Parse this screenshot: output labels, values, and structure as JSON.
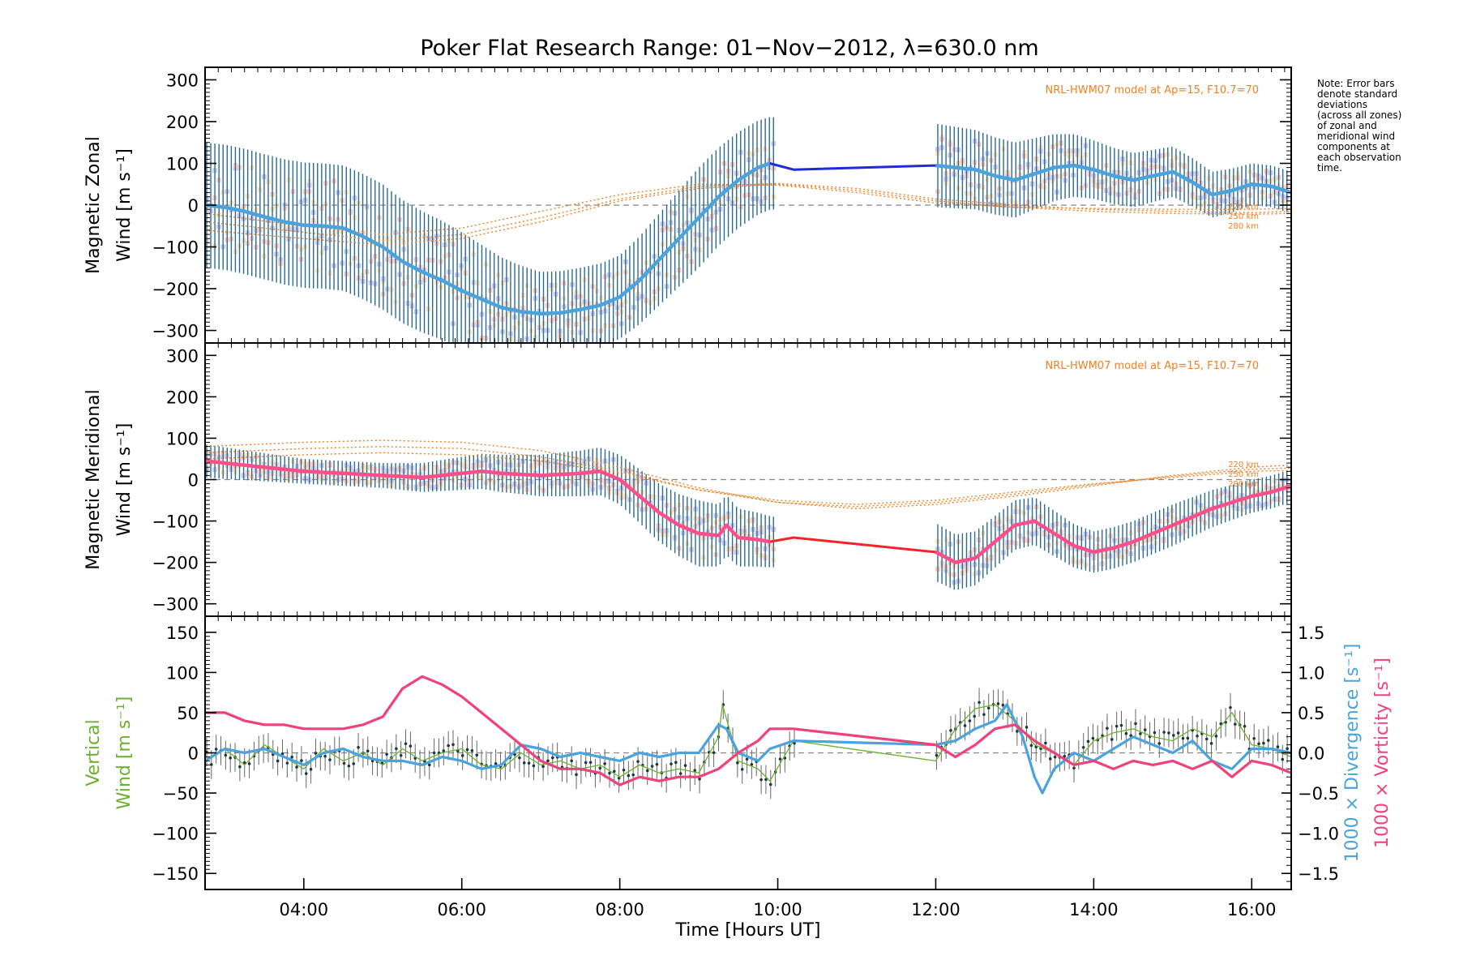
{
  "page": {
    "title": "Poker Flat Research Range: 01−Nov−2012, λ=630.0 nm",
    "note": "Note: Error bars\ndenote standard\ndeviations\n(across all zones)\nof zonal and\nmeridional wind\ncomponents at\neach observation\ntime."
  },
  "colors": {
    "zonal_fit": "#4aa3dd",
    "zonal_gap": "#1f2ad8",
    "meridional_fit": "#ff4f8b",
    "meridional_gap": "#f5232c",
    "vertical": "#6bb02f",
    "divergence": "#4aa3dd",
    "vorticity": "#f0427a",
    "model": "#f08020",
    "errorbar": "#2a6a90",
    "zone_a": "#ffd08a",
    "zone_b": "#a9a4e0",
    "zone_c": "#ffa890"
  },
  "chart_data": [
    {
      "id": "zonal",
      "type": "line",
      "ylabel_line1": "Magnetic Zonal",
      "ylabel_line2": "Wind [m s⁻¹]",
      "ylim": [
        -330,
        330
      ],
      "xlim": [
        2.75,
        16.5
      ],
      "yticks": [
        -300,
        -200,
        -100,
        0,
        100,
        200,
        300
      ],
      "ytick_labels": [
        "−300",
        "−200",
        "−100",
        "0",
        "100",
        "200",
        "300"
      ],
      "model_label": "NRL-HWM07 model at Ap=15, F10.7=70",
      "model_altitude_labels": [
        "220 km",
        "250 km",
        "280 km"
      ],
      "series": [
        {
          "role": "fit",
          "x": [
            2.75,
            3.0,
            3.25,
            3.5,
            3.75,
            4.0,
            4.25,
            4.5,
            4.75,
            5.0,
            5.25,
            5.5,
            5.75,
            6.0,
            6.25,
            6.5,
            6.75,
            7.0,
            7.25,
            7.5,
            7.75,
            8.0,
            8.25,
            8.5,
            8.75,
            9.0,
            9.25,
            9.5,
            9.75,
            9.9
          ],
          "y": [
            0,
            -5,
            -15,
            -28,
            -40,
            -48,
            -50,
            -55,
            -75,
            -100,
            -135,
            -160,
            -180,
            -205,
            -225,
            -245,
            -255,
            -260,
            -258,
            -250,
            -240,
            -220,
            -180,
            -130,
            -80,
            -30,
            20,
            60,
            90,
            100
          ]
        },
        {
          "role": "gap",
          "x": [
            9.9,
            10.2,
            12.0
          ],
          "y": [
            100,
            85,
            95
          ]
        },
        {
          "role": "fit",
          "x": [
            12.0,
            12.25,
            12.5,
            12.75,
            13.0,
            13.25,
            13.5,
            13.75,
            14.0,
            14.25,
            14.5,
            14.75,
            15.0,
            15.25,
            15.5,
            15.75,
            16.0,
            16.25,
            16.5
          ],
          "y": [
            95,
            90,
            85,
            70,
            60,
            75,
            90,
            95,
            85,
            70,
            60,
            70,
            80,
            55,
            25,
            35,
            50,
            45,
            30
          ]
        }
      ],
      "model_curves": [
        {
          "x": [
            2.75,
            4,
            5,
            6,
            7,
            8,
            9,
            10,
            11,
            12,
            13,
            14,
            15,
            16,
            16.5
          ],
          "y": [
            -60,
            -80,
            -95,
            -80,
            -40,
            10,
            40,
            50,
            35,
            10,
            -5,
            -15,
            -20,
            -22,
            -20
          ]
        },
        {
          "x": [
            2.75,
            4,
            5,
            6,
            7,
            8,
            9,
            10,
            11,
            12,
            13,
            14,
            15,
            16,
            16.5
          ],
          "y": [
            -40,
            -65,
            -85,
            -70,
            -30,
            15,
            45,
            52,
            40,
            15,
            0,
            -10,
            -15,
            -18,
            -15
          ]
        },
        {
          "x": [
            2.75,
            4,
            5,
            6,
            7,
            8,
            9,
            10,
            11,
            12,
            13,
            14,
            15,
            16,
            16.5
          ],
          "y": [
            -20,
            -50,
            -70,
            -55,
            -15,
            25,
            50,
            48,
            30,
            5,
            -5,
            -8,
            -10,
            -10,
            -8
          ]
        }
      ],
      "spread": {
        "x": [
          2.75,
          4,
          5,
          6,
          7,
          8,
          9,
          10,
          12,
          13,
          14,
          15,
          16,
          16.5
        ],
        "half_width": [
          150,
          150,
          150,
          140,
          100,
          100,
          120,
          110,
          100,
          90,
          70,
          60,
          50,
          50
        ]
      }
    },
    {
      "id": "meridional",
      "type": "line",
      "ylabel_line1": "Magnetic Meridional",
      "ylabel_line2": "Wind [m s⁻¹]",
      "ylim": [
        -330,
        330
      ],
      "xlim": [
        2.75,
        16.5
      ],
      "yticks": [
        -300,
        -200,
        -100,
        0,
        100,
        200,
        300
      ],
      "ytick_labels": [
        "−300",
        "−200",
        "−100",
        "0",
        "100",
        "200",
        "300"
      ],
      "model_label": "NRL-HWM07 model at Ap=15, F10.7=70",
      "model_altitude_labels": [
        "220 km",
        "250 km",
        "280 km"
      ],
      "series": [
        {
          "role": "fit",
          "x": [
            2.75,
            3.0,
            3.5,
            4.0,
            4.5,
            5.0,
            5.5,
            6.0,
            6.25,
            6.5,
            7.0,
            7.5,
            7.75,
            8.0,
            8.25,
            8.5,
            8.75,
            9.0,
            9.25,
            9.35,
            9.5,
            9.75,
            9.9
          ],
          "y": [
            45,
            40,
            30,
            20,
            15,
            10,
            5,
            15,
            20,
            15,
            10,
            15,
            20,
            0,
            -40,
            -80,
            -110,
            -130,
            -135,
            -110,
            -140,
            -145,
            -150
          ]
        },
        {
          "role": "gap",
          "x": [
            9.9,
            10.2,
            12.0
          ],
          "y": [
            -150,
            -140,
            -175
          ]
        },
        {
          "role": "fit",
          "x": [
            12.0,
            12.25,
            12.5,
            12.75,
            13.0,
            13.25,
            13.5,
            13.75,
            14.0,
            14.25,
            14.5,
            14.75,
            15.0,
            15.25,
            15.5,
            15.75,
            16.0,
            16.25,
            16.5
          ],
          "y": [
            -175,
            -200,
            -190,
            -150,
            -110,
            -100,
            -130,
            -160,
            -175,
            -165,
            -150,
            -130,
            -110,
            -90,
            -70,
            -55,
            -40,
            -30,
            -15
          ]
        }
      ],
      "model_curves": [
        {
          "x": [
            2.75,
            4,
            5,
            6,
            7,
            8,
            9,
            10,
            11,
            12,
            13,
            14,
            15,
            16,
            16.5
          ],
          "y": [
            80,
            90,
            95,
            90,
            70,
            30,
            -20,
            -55,
            -70,
            -60,
            -40,
            -15,
            10,
            30,
            35
          ]
        },
        {
          "x": [
            2.75,
            4,
            5,
            6,
            7,
            8,
            9,
            10,
            11,
            12,
            13,
            14,
            15,
            16,
            16.5
          ],
          "y": [
            65,
            75,
            80,
            75,
            55,
            20,
            -25,
            -55,
            -65,
            -55,
            -35,
            -12,
            8,
            25,
            28
          ]
        },
        {
          "x": [
            2.75,
            4,
            5,
            6,
            7,
            8,
            9,
            10,
            11,
            12,
            13,
            14,
            15,
            16,
            16.5
          ],
          "y": [
            50,
            60,
            65,
            60,
            45,
            15,
            -25,
            -50,
            -60,
            -50,
            -30,
            -10,
            5,
            20,
            22
          ]
        }
      ],
      "spread": {
        "x": [
          2.75,
          4,
          5,
          6,
          7,
          8,
          9,
          10,
          12,
          13,
          14,
          15,
          16,
          16.5
        ],
        "half_width": [
          40,
          30,
          30,
          40,
          50,
          60,
          80,
          60,
          70,
          60,
          50,
          50,
          40,
          40
        ]
      }
    },
    {
      "id": "vertical",
      "type": "line",
      "ylabel_line1": "Vertical",
      "ylabel_line2": "Wind [m s⁻¹]",
      "ylim": [
        -170,
        170
      ],
      "xlim": [
        2.75,
        16.5
      ],
      "yticks": [
        -150,
        -100,
        -50,
        0,
        50,
        100,
        150
      ],
      "ytick_labels": [
        "−150",
        "−100",
        "−50",
        "0",
        "50",
        "100",
        "150"
      ],
      "y2label_a": "1000 × Divergence [s⁻¹]",
      "y2label_b": "1000 × Vorticity [s⁻¹]",
      "y2lim": [
        -1.7,
        1.7
      ],
      "y2ticks": [
        -1.5,
        -1.0,
        -0.5,
        0.0,
        0.5,
        1.0,
        1.5
      ],
      "y2tick_labels": [
        "−1.5",
        "−1.0",
        "−0.5",
        "0.0",
        "0.5",
        "1.0",
        "1.5"
      ],
      "xticks": [
        4,
        6,
        8,
        10,
        12,
        14,
        16
      ],
      "xtick_labels": [
        "04:00",
        "06:00",
        "08:00",
        "10:00",
        "12:00",
        "14:00",
        "16:00"
      ],
      "xlabel": "Time [Hours UT]",
      "series": [
        {
          "name": "",
          "role": "vertical",
          "x": [
            2.75,
            3.0,
            3.25,
            3.5,
            3.75,
            4.0,
            4.25,
            4.5,
            4.75,
            5.0,
            5.25,
            5.5,
            5.75,
            6.0,
            6.25,
            6.5,
            6.75,
            7.0,
            7.25,
            7.5,
            7.75,
            8.0,
            8.25,
            8.5,
            8.75,
            9.0,
            9.25,
            9.3,
            9.5,
            9.75,
            9.9,
            10.2,
            12.0,
            12.25,
            12.5,
            12.75,
            13.0,
            13.25,
            13.5,
            13.75,
            14.0,
            14.25,
            14.5,
            14.75,
            15.0,
            15.25,
            15.5,
            15.75,
            16.0,
            16.25,
            16.5
          ],
          "y": [
            -10,
            5,
            -15,
            10,
            -5,
            -20,
            5,
            -10,
            0,
            -15,
            5,
            -10,
            0,
            5,
            -15,
            -20,
            0,
            -15,
            -10,
            -20,
            -15,
            -30,
            -15,
            -25,
            -20,
            -25,
            20,
            60,
            -10,
            -20,
            -35,
            15,
            -10,
            30,
            55,
            60,
            40,
            10,
            0,
            -15,
            15,
            25,
            30,
            20,
            15,
            30,
            20,
            50,
            10,
            5,
            -5
          ]
        },
        {
          "name": "",
          "role": "divergence",
          "x": [
            2.75,
            3.0,
            3.25,
            3.5,
            3.75,
            4.0,
            4.25,
            4.5,
            4.75,
            5.0,
            5.25,
            5.5,
            5.75,
            6.0,
            6.25,
            6.5,
            6.75,
            7.0,
            7.25,
            7.5,
            7.75,
            8.0,
            8.25,
            8.5,
            8.75,
            9.0,
            9.25,
            9.35,
            9.5,
            9.75,
            9.9,
            10.2,
            12.0,
            12.25,
            12.5,
            12.75,
            12.9,
            13.1,
            13.25,
            13.35,
            13.5,
            13.75,
            14.0,
            14.25,
            14.5,
            14.75,
            15.0,
            15.25,
            15.5,
            15.75,
            16.0,
            16.25,
            16.5
          ],
          "y": [
            -0.1,
            0.05,
            0.0,
            0.05,
            -0.05,
            -0.15,
            0.0,
            0.05,
            -0.05,
            -0.1,
            -0.1,
            -0.15,
            -0.05,
            -0.1,
            -0.2,
            -0.15,
            0.1,
            0.05,
            -0.05,
            0.0,
            -0.05,
            -0.1,
            0.0,
            -0.05,
            0.0,
            0.0,
            0.35,
            0.3,
            0.0,
            -0.1,
            0.05,
            0.15,
            0.1,
            0.15,
            0.3,
            0.4,
            0.6,
            0.2,
            -0.3,
            -0.5,
            -0.2,
            0.0,
            -0.1,
            0.05,
            0.2,
            0.1,
            0.0,
            0.15,
            -0.1,
            -0.2,
            0.05,
            0.05,
            0.0
          ]
        },
        {
          "name": "",
          "role": "vorticity",
          "x": [
            2.75,
            3.0,
            3.25,
            3.5,
            3.75,
            4.0,
            4.25,
            4.5,
            4.75,
            5.0,
            5.25,
            5.5,
            5.75,
            6.0,
            6.25,
            6.5,
            6.75,
            7.0,
            7.25,
            7.5,
            7.75,
            8.0,
            8.25,
            8.5,
            8.75,
            9.0,
            9.25,
            9.5,
            9.75,
            9.9,
            10.2,
            12.0,
            12.25,
            12.5,
            12.75,
            13.0,
            13.25,
            13.5,
            13.75,
            14.0,
            14.25,
            14.5,
            14.75,
            15.0,
            15.25,
            15.5,
            15.75,
            16.0,
            16.25,
            16.5
          ],
          "y": [
            0.5,
            0.5,
            0.4,
            0.35,
            0.35,
            0.3,
            0.3,
            0.3,
            0.35,
            0.45,
            0.8,
            0.95,
            0.85,
            0.7,
            0.5,
            0.3,
            0.1,
            -0.1,
            -0.2,
            -0.2,
            -0.25,
            -0.4,
            -0.3,
            -0.35,
            -0.3,
            -0.3,
            -0.2,
            0.0,
            0.15,
            0.3,
            0.3,
            0.1,
            -0.05,
            0.1,
            0.3,
            0.35,
            0.15,
            0.0,
            -0.15,
            -0.1,
            -0.2,
            -0.1,
            -0.15,
            -0.1,
            -0.2,
            -0.1,
            -0.3,
            -0.1,
            -0.15,
            -0.25
          ]
        }
      ]
    }
  ]
}
